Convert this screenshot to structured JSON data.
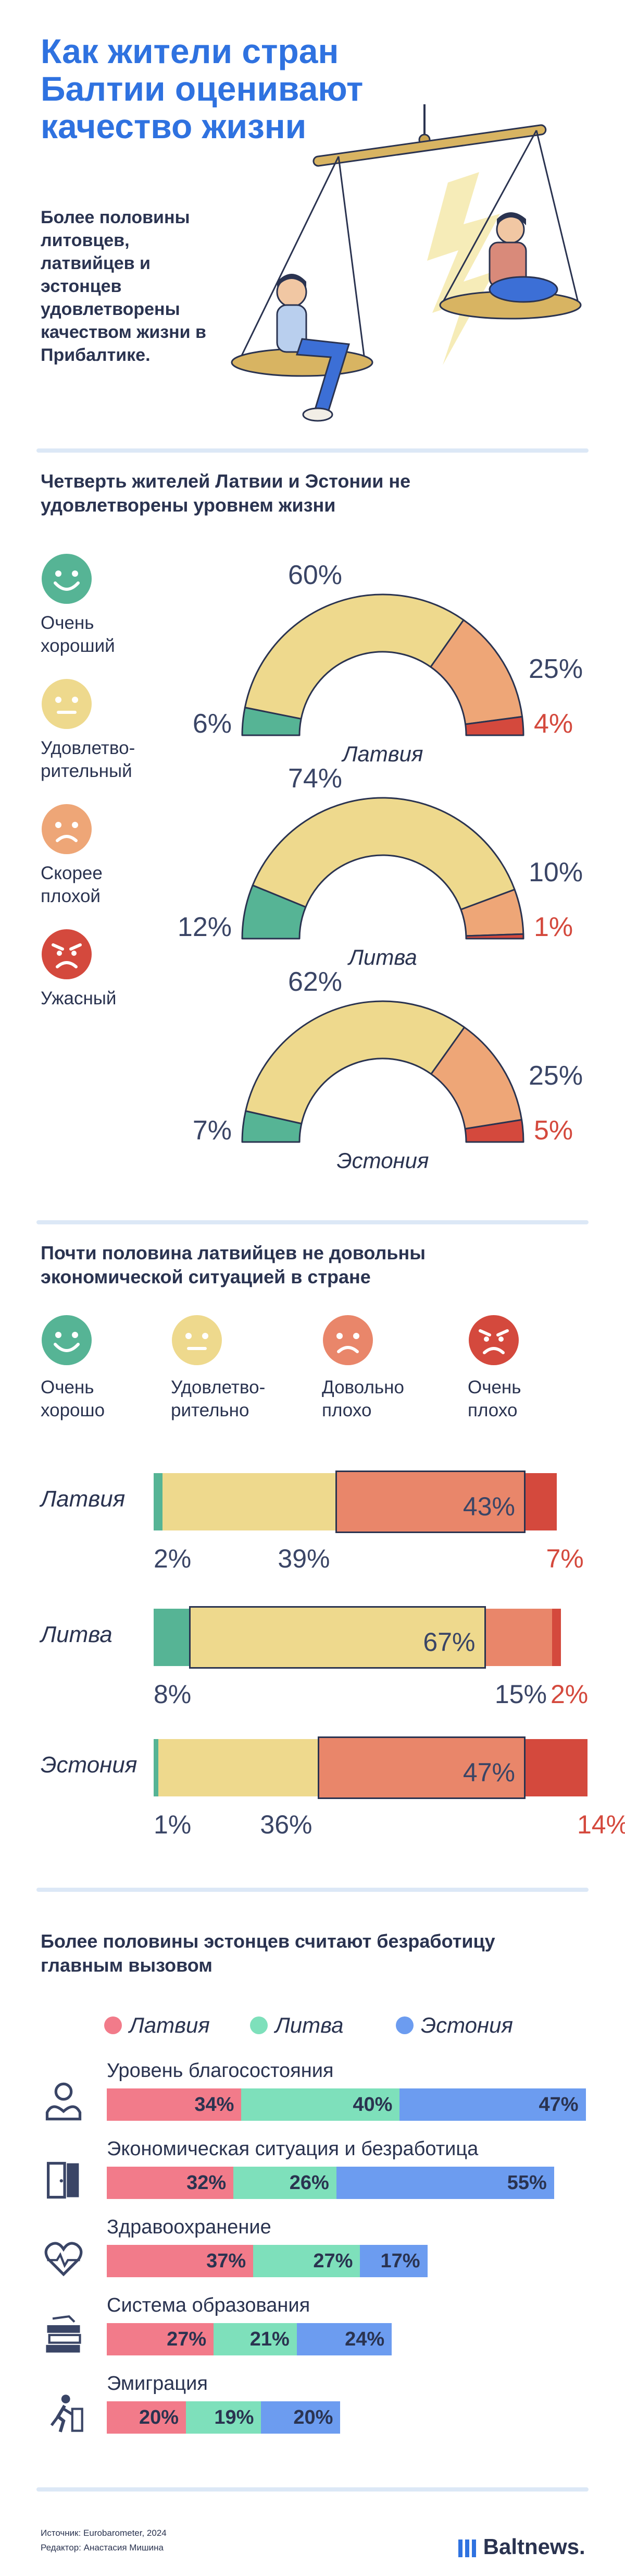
{
  "header": {
    "title": "Как жители стран Балтии оценивают качество жизни",
    "intro": "Более половины литовцев, латвийцев и эстонцев удовлетворены качеством жизни в Прибалтике."
  },
  "section1": {
    "title": "Четверть жителей Латвии и Эстонии не удовлетворены уровнем жизни",
    "legend": [
      {
        "label": "Очень хороший",
        "face": "very-happy-face-icon",
        "color": "#56b495"
      },
      {
        "label": "Удовлетво-рительный",
        "face": "neutral-face-icon",
        "color": "#eed98d"
      },
      {
        "label": "Скорее плохой",
        "face": "sad-face-icon",
        "color": "#eea677"
      },
      {
        "label": "Ужасный",
        "face": "angry-face-icon",
        "color": "#d4493d"
      }
    ]
  },
  "chart_data": [
    {
      "type": "pie",
      "title": "Четверть жителей Латвии и Эстонии не удовлетворены уровнем жизни",
      "categories": [
        "Очень хороший",
        "Удовлетво-рительный",
        "Скорее плохой",
        "Ужасный"
      ],
      "colors": [
        "#56b495",
        "#eed98d",
        "#eea677",
        "#d4493d"
      ],
      "series": [
        {
          "name": "Латвия",
          "values": [
            6,
            60,
            25,
            4
          ],
          "labels": [
            "6%",
            "60%",
            "25%",
            "4%"
          ]
        },
        {
          "name": "Литва",
          "values": [
            12,
            74,
            10,
            1
          ],
          "labels": [
            "12%",
            "74%",
            "10%",
            "1%"
          ]
        },
        {
          "name": "Эстония",
          "values": [
            7,
            62,
            25,
            5
          ],
          "labels": [
            "7%",
            "62%",
            "25%",
            "5%"
          ]
        }
      ]
    },
    {
      "type": "bar",
      "title": "Почти половина латвийцев не довольны экономической ситуацией в стране",
      "categories": [
        "Очень хорошо",
        "Удовлетво-рительно",
        "Довольно плохо",
        "Очень плохо"
      ],
      "colors": [
        "#56b495",
        "#eed98d",
        "#e9866a",
        "#d4493d"
      ],
      "series": [
        {
          "name": "Латвия",
          "values": [
            2,
            39,
            43,
            7
          ],
          "labels": [
            "2%",
            "39%",
            "43%",
            "7%"
          ]
        },
        {
          "name": "Литва",
          "values": [
            8,
            67,
            15,
            2
          ],
          "labels": [
            "8%",
            "67%",
            "15%",
            "2%"
          ]
        },
        {
          "name": "Эстония",
          "values": [
            1,
            36,
            47,
            14
          ],
          "labels": [
            "1%",
            "36%",
            "47%",
            "14%"
          ]
        }
      ]
    },
    {
      "type": "bar",
      "title": "Более половины эстонцев считают безработицу главным вызовом",
      "categories": [
        "Уровень благосостояния",
        "Экономическая ситуация и безработица",
        "Здравоохранение",
        "Система образования",
        "Эмиграция"
      ],
      "legend": [
        "Латвия",
        "Литва",
        "Эстония"
      ],
      "colors": [
        "#f27b8a",
        "#7ee0bb",
        "#6c9cf0"
      ],
      "series": [
        {
          "name": "Латвия",
          "values": [
            34,
            32,
            37,
            27,
            20
          ],
          "labels": [
            "34%",
            "32%",
            "37%",
            "27%",
            "20%"
          ]
        },
        {
          "name": "Литва",
          "values": [
            40,
            26,
            27,
            21,
            19
          ],
          "labels": [
            "40%",
            "26%",
            "27%",
            "21%",
            "19%"
          ]
        },
        {
          "name": "Эстония",
          "values": [
            47,
            55,
            17,
            24,
            20
          ],
          "labels": [
            "47%",
            "55%",
            "17%",
            "24%",
            "20%"
          ]
        }
      ]
    }
  ],
  "section2": {
    "title": "Почти половина латвийцев не довольны экономической ситуацией в стране",
    "legend": [
      {
        "label": "Очень хорошо",
        "face": "very-happy-face-icon",
        "color": "#56b495"
      },
      {
        "label": "Удовлетво-рительно",
        "face": "neutral-face-icon",
        "color": "#eed98d"
      },
      {
        "label": "Довольно плохо",
        "face": "sad-face-icon",
        "color": "#e9866a"
      },
      {
        "label": "Очень плохо",
        "face": "angry-face-icon",
        "color": "#d4493d"
      }
    ]
  },
  "section3": {
    "title": "Более половины эстонцев считают безработицу главным вызовом",
    "icons": [
      "wealth-icon",
      "economy-door-icon",
      "healthcare-heart-icon",
      "education-books-icon",
      "emigration-icon"
    ]
  },
  "footer": {
    "source": "Источник: Eurobarometer, 2024",
    "editor": "Редактор: Анастасия Мишина",
    "logo": "Baltnews."
  }
}
